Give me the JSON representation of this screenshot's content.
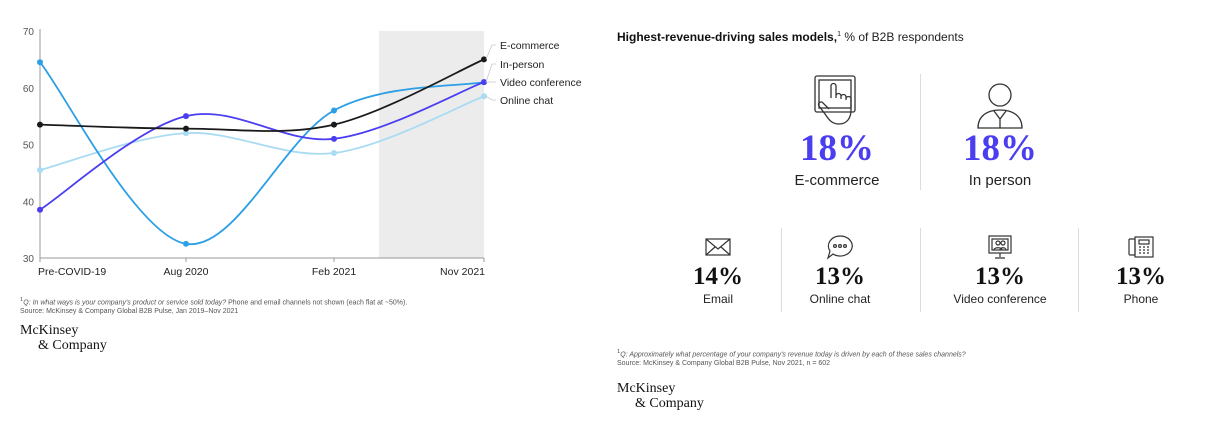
{
  "chart_data": [
    {
      "type": "line",
      "categories": [
        "Pre-COVID-19",
        "Aug 2020",
        "Feb 2021",
        "Nov 2021"
      ],
      "ylim": [
        30,
        70
      ],
      "yticks": [
        30,
        40,
        50,
        60,
        70
      ],
      "grid": false,
      "legend_placement": "right",
      "shaded_region": "Feb 2021 to Nov 2021",
      "series": [
        {
          "name": "E-commerce",
          "color": "#1a1a1a",
          "values": [
            53.5,
            52.8,
            53.5,
            65
          ]
        },
        {
          "name": "In-person",
          "color": "#2c9fe6",
          "values": [
            64.5,
            32.5,
            56,
            61
          ]
        },
        {
          "name": "Video conference",
          "color": "#4b3df0",
          "values": [
            38.5,
            55,
            51,
            61
          ]
        },
        {
          "name": "Online chat",
          "color": "#a9dcf2",
          "values": [
            45.5,
            52,
            48.5,
            58.5
          ]
        }
      ]
    },
    {
      "type": "table",
      "title": "Highest-revenue-driving sales models,",
      "title_sup": "1",
      "subtitle": "% of B2B respondents",
      "items": [
        {
          "label": "E-commerce",
          "value": "18%",
          "icon": "tablet-touch-icon"
        },
        {
          "label": "In person",
          "value": "18%",
          "icon": "person-icon"
        },
        {
          "label": "Email",
          "value": "14%",
          "icon": "envelope-icon"
        },
        {
          "label": "Online chat",
          "value": "13%",
          "icon": "chat-bubble-icon"
        },
        {
          "label": "Video conference",
          "value": "13%",
          "icon": "video-monitor-icon"
        },
        {
          "label": "Phone",
          "value": "13%",
          "icon": "phone-icon"
        }
      ]
    }
  ],
  "left_footnote": {
    "sup": "1",
    "question": "Q: In what ways is your company's product or service sold today?",
    "note": " Phone and email channels not shown (each flat at ~50%).",
    "source": "Source: McKinsey & Company Global B2B Pulse, Jan 2019–Nov 2021"
  },
  "right_footnote": {
    "sup": "1",
    "question": "Q: Approximately what percentage of your company's revenue today is driven by each of these sales channels?",
    "source": "Source: McKinsey & Company Global B2B Pulse, Nov 2021, n = 602"
  },
  "brand": {
    "line1": "McKinsey",
    "line2": "& Company"
  },
  "colors": {
    "accent": "#4b3df0",
    "shade": "#ececec",
    "axis": "#999999"
  }
}
